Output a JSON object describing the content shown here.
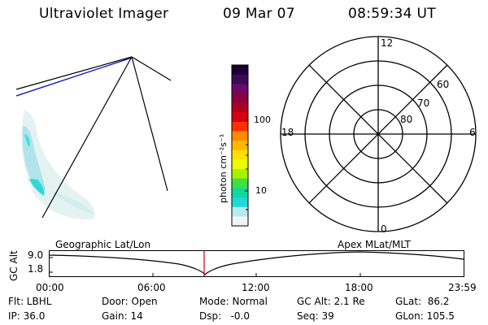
{
  "header": {
    "instrument": "Ultraviolet Imager",
    "date": "09 Mar 07",
    "time": "08:59:34 UT"
  },
  "colorbar": {
    "unit_label": "photon cm⁻²s⁻¹",
    "tick_labels": [
      "100",
      "10"
    ],
    "colors": [
      "#1a0033",
      "#3a0a55",
      "#6a0a66",
      "#8a0040",
      "#b00020",
      "#d80010",
      "#ff3000",
      "#ff8a00",
      "#ffb800",
      "#ffe000",
      "#e8ff00",
      "#a8f000",
      "#40e040",
      "#10d8a0",
      "#20d8d8",
      "#b8eaf0",
      "#f0f4f4"
    ]
  },
  "polar_plot": {
    "mlt_labels": {
      "top": "12",
      "bottom": "0",
      "left": "18",
      "right": "6"
    },
    "lat_labels": [
      "60",
      "70",
      "80"
    ]
  },
  "orbit_plot": {
    "ylabel": "GC Alt",
    "ytick_top": "9.0",
    "ytick_bottom": "1.8",
    "left_title": "Geographic Lat/Lon",
    "right_title": "Apex MLat/MLT",
    "xtick_labels": [
      "00:00",
      "06:00",
      "12:00",
      "18:00",
      "23:59"
    ]
  },
  "status": {
    "filter": "Flt: LBHL",
    "door": "Door: Open",
    "mode": "Mode: Normal",
    "gc_alt": "GC Alt: 2.1 Re",
    "glat": "GLat:  86.2",
    "ip": "IP: 36.0",
    "gain": "Gain: 14",
    "dsp": "Dsp:   -0.0",
    "seq": "Seq: 39",
    "glon": "GLon: 105.5"
  },
  "colors": {
    "marker_line": "#cc0000",
    "limb_line": "#0000cc",
    "aurora_light": "#c8ecec",
    "aurora_mid": "#40e0e0",
    "aurora_strong": "#18c8c8"
  }
}
